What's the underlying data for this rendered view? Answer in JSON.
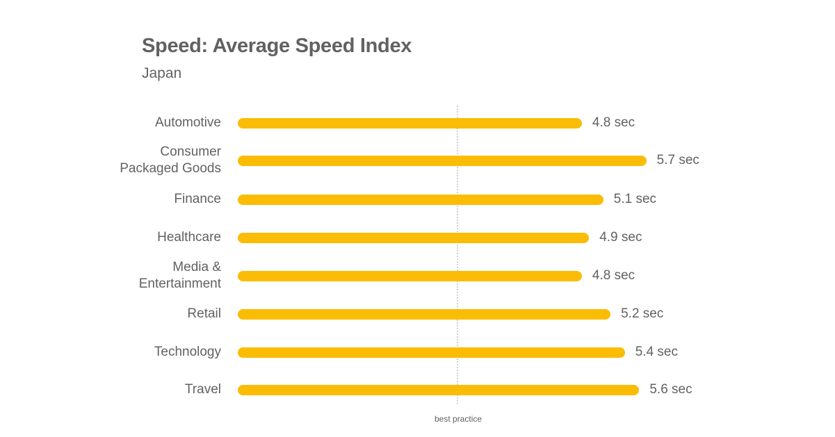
{
  "chart_data": {
    "type": "bar",
    "orientation": "horizontal",
    "title": "Speed: Average Speed Index",
    "subtitle": "Japan",
    "categories": [
      "Automotive",
      "Consumer Packaged Goods",
      "Finance",
      "Healthcare",
      "Media & Entertainment",
      "Retail",
      "Technology",
      "Travel"
    ],
    "values": [
      4.8,
      5.7,
      5.1,
      4.9,
      4.8,
      5.2,
      5.4,
      5.6
    ],
    "value_labels": [
      "4.8 sec",
      "5.7 sec",
      "5.1 sec",
      "4.9 sec",
      "4.8 sec",
      "5.2 sec",
      "5.4 sec",
      "5.6 sec"
    ],
    "unit": "sec",
    "reference_line": {
      "label": "best practice",
      "value": 3
    },
    "bar_color": "#FBBC05",
    "xlabel": "",
    "ylabel": "",
    "grid": false
  },
  "header": {
    "title": "Speed: Average Speed Index",
    "subtitle": "Japan"
  },
  "rows": [
    {
      "label_lines": [
        "Automotive"
      ],
      "value": "4.8 sec"
    },
    {
      "label_lines": [
        "Consumer",
        "Packaged Goods"
      ],
      "value": "5.7 sec"
    },
    {
      "label_lines": [
        "Finance"
      ],
      "value": "5.1 sec"
    },
    {
      "label_lines": [
        "Healthcare"
      ],
      "value": "4.9 sec"
    },
    {
      "label_lines": [
        "Media &",
        "Entertainment"
      ],
      "value": "4.8 sec"
    },
    {
      "label_lines": [
        "Retail"
      ],
      "value": "5.2 sec"
    },
    {
      "label_lines": [
        "Technology"
      ],
      "value": "5.4 sec"
    },
    {
      "label_lines": [
        "Travel"
      ],
      "value": "5.6 sec"
    }
  ],
  "reference": {
    "label": "best practice"
  }
}
